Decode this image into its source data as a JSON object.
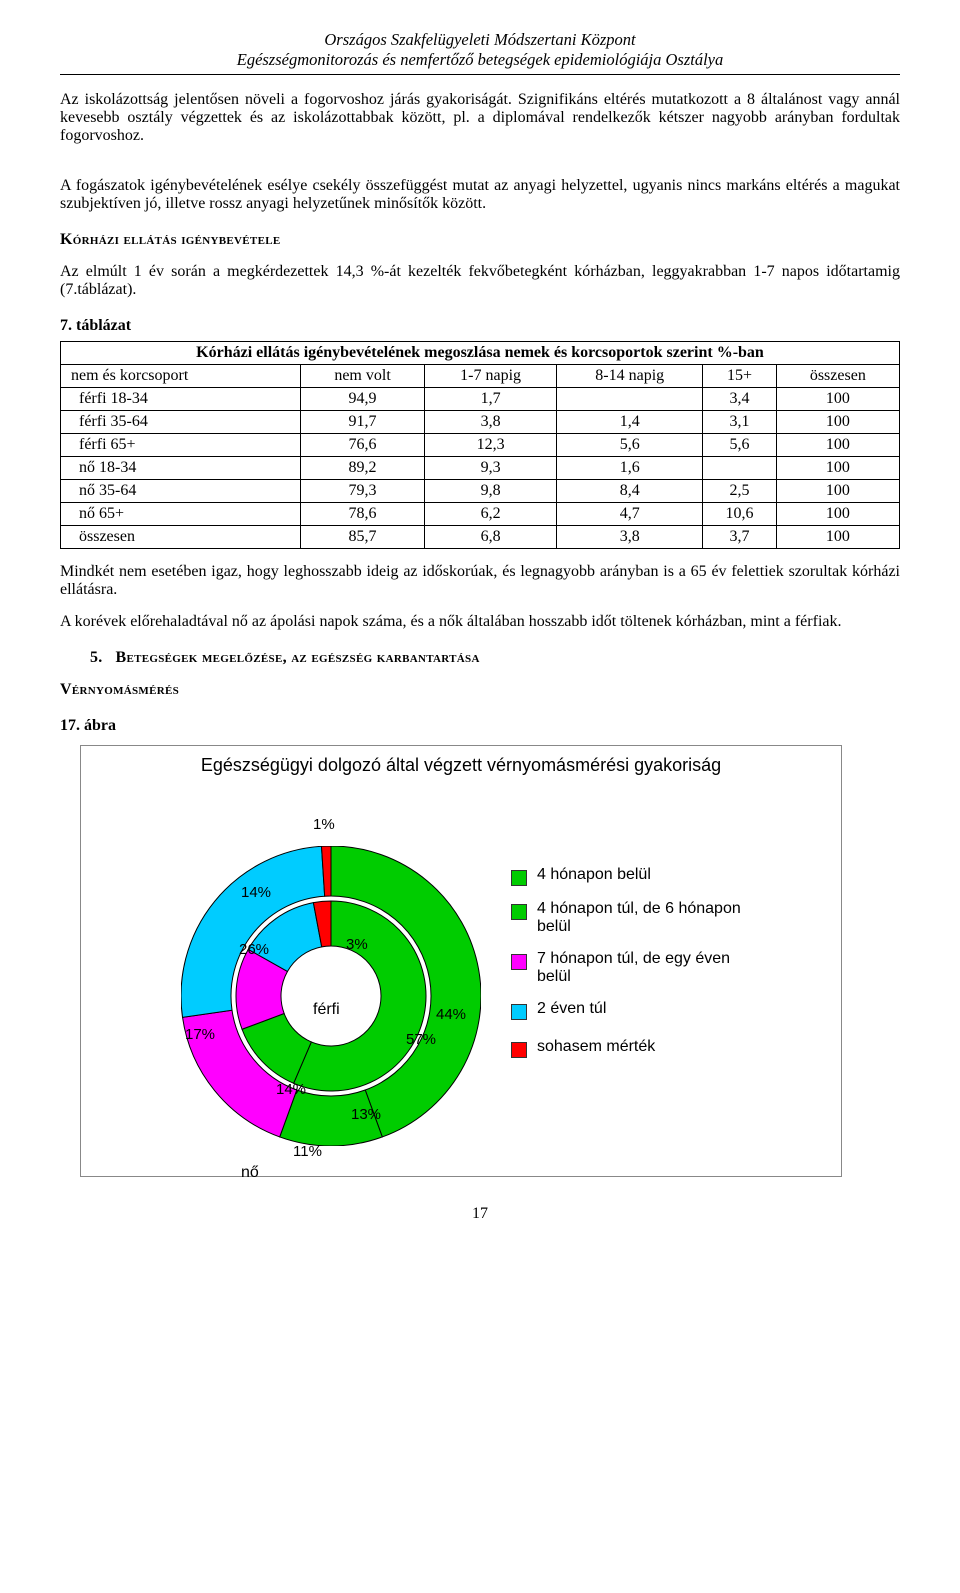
{
  "header": {
    "line1": "Országos Szakfelügyeleti Módszertani Központ",
    "line2": "Egészségmonitorozás és nemfertőző betegségek epidemiológiája Osztálya"
  },
  "paragraphs": {
    "p1": "Az iskolázottság jelentősen növeli a fogorvoshoz járás gyakoriságát. Szignifikáns eltérés mutatkozott a 8 általánost vagy annál kevesebb osztály végzettek és az iskolázottabbak között, pl. a diplomával rendelkezők kétszer nagyobb arányban fordultak fogorvoshoz.",
    "p2": "A fogászatok igénybevételének esélye csekély összefüggést mutat az anyagi helyzettel, ugyanis nincs markáns eltérés a magukat szubjektíven jó, illetve rossz anyagi helyzetűnek minősítők között.",
    "h1": "Kórházi ellátás igénybevétele",
    "p3": "Az elmúlt 1 év során a megkérdezettek 14,3 %-át kezelték fekvőbetegként kórházban, leggyakrabban 1-7 napos időtartamig (7.táblázat).",
    "tabref": "7. táblázat",
    "p4a": "Mindkét nem esetében igaz, hogy leghosszabb ideig az időskorúak, és legnagyobb arányban is a 65 év felettiek szorultak kórházi ellátásra.",
    "p4b": "A korévek előrehaladtával nő az ápolási napok száma, és a nők általában hosszabb időt töltenek kórházban, mint a férfiak.",
    "sec5num": "5.",
    "sec5": "Betegségek megelőzése, az egészség karbantartása",
    "h2": "Vérnyomásmérés",
    "figref": "17. ábra"
  },
  "table": {
    "caption": "Kórházi ellátás igénybevételének megoszlása nemek és korcsoportok szerint %-ban",
    "columns": [
      "nem és korcsoport",
      "nem volt",
      "1-7 napig",
      "8-14 napig",
      "15+",
      "összesen"
    ],
    "rows": [
      [
        "férfi 18-34",
        "94,9",
        "1,7",
        "",
        "3,4",
        "100"
      ],
      [
        "férfi 35-64",
        "91,7",
        "3,8",
        "1,4",
        "3,1",
        "100"
      ],
      [
        "férfi 65+",
        "76,6",
        "12,3",
        "5,6",
        "5,6",
        "100"
      ],
      [
        "nő 18-34",
        "89,2",
        "9,3",
        "1,6",
        "",
        "100"
      ],
      [
        "nő 35-64",
        "79,3",
        "9,8",
        "8,4",
        "2,5",
        "100"
      ],
      [
        "nő 65+",
        "78,6",
        "6,2",
        "4,7",
        "10,6",
        "100"
      ],
      [
        "összesen",
        "85,7",
        "6,8",
        "3,8",
        "3,7",
        "100"
      ]
    ]
  },
  "chart": {
    "title": "Egészségügyi dolgozó által végzett vérnyomásmérési gyakoriság",
    "type": "donut-nested",
    "outer_ring_label": "nő",
    "inner_ring_label": "férfi",
    "legend": [
      {
        "label": "4 hónapon belül",
        "color": "#00cc00"
      },
      {
        "label": "4 hónapon túl, de 6 hónapon belül",
        "color": "#00cc00"
      },
      {
        "label": "7 hónapon túl, de egy éven belül",
        "color": "#ff00ff"
      },
      {
        "label": "2 éven túl",
        "color": "#00ccff"
      },
      {
        "label": "sohasem mérték",
        "color": "#ff0000"
      }
    ],
    "outer": {
      "values": [
        44,
        11,
        17,
        26,
        1
      ],
      "colors": [
        "#00cc00",
        "#00cc00",
        "#ff00ff",
        "#00ccff",
        "#ff0000"
      ],
      "labels": [
        "44%",
        "11%",
        "17%",
        "26%",
        "1%"
      ]
    },
    "inner": {
      "values": [
        57,
        13,
        14,
        14,
        3
      ],
      "colors": [
        "#00cc00",
        "#00cc00",
        "#ff00ff",
        "#00ccff",
        "#ff0000"
      ],
      "labels": [
        "57%",
        "13%",
        "14%",
        "14%",
        "3%"
      ]
    },
    "center_text": "férfi",
    "background_color": "#ffffff",
    "border_color": "#888888",
    "title_fontsize": 18,
    "label_fontsize": 15,
    "legend_fontsize": 16
  },
  "pagenum": "17"
}
